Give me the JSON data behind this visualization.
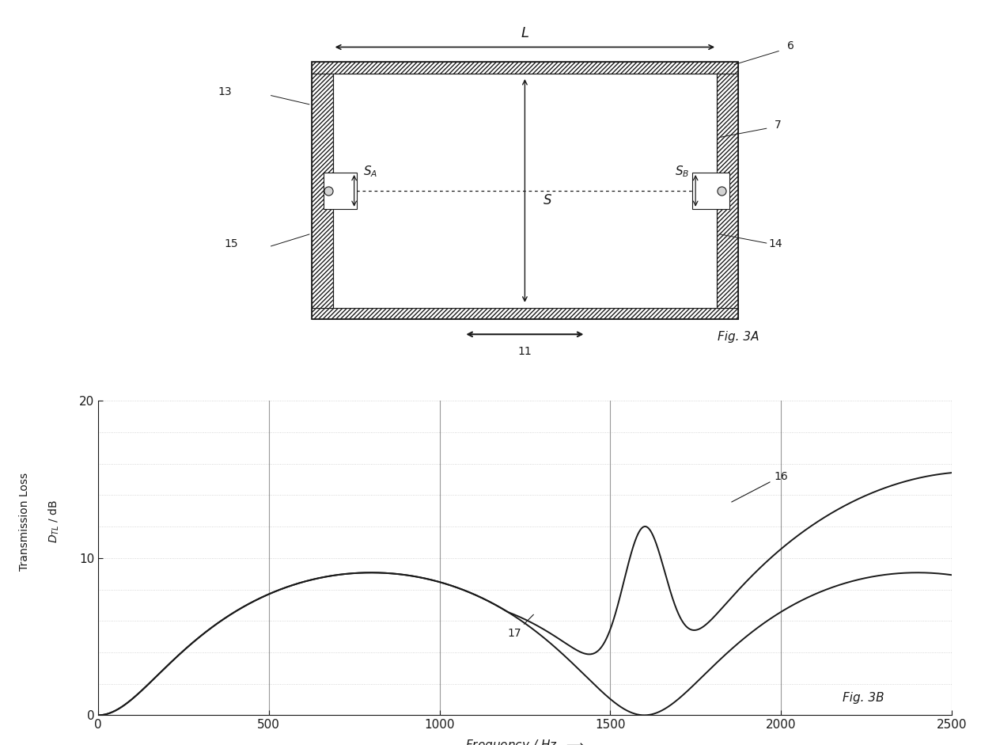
{
  "fig_title_a": "Fig. 3A",
  "fig_title_b": "Fig. 3B",
  "graph_xlabel": "Frequency / Hz",
  "graph_xlim": [
    0,
    2500
  ],
  "graph_ylim": [
    0,
    20
  ],
  "graph_xticks": [
    0,
    500,
    1000,
    1500,
    2000,
    2500
  ],
  "graph_yticks": [
    0,
    10,
    20
  ],
  "bg_color": "#ffffff",
  "line_color": "#1a1a1a",
  "grid_major_color": "#999999",
  "grid_minor_color": "#cccccc"
}
